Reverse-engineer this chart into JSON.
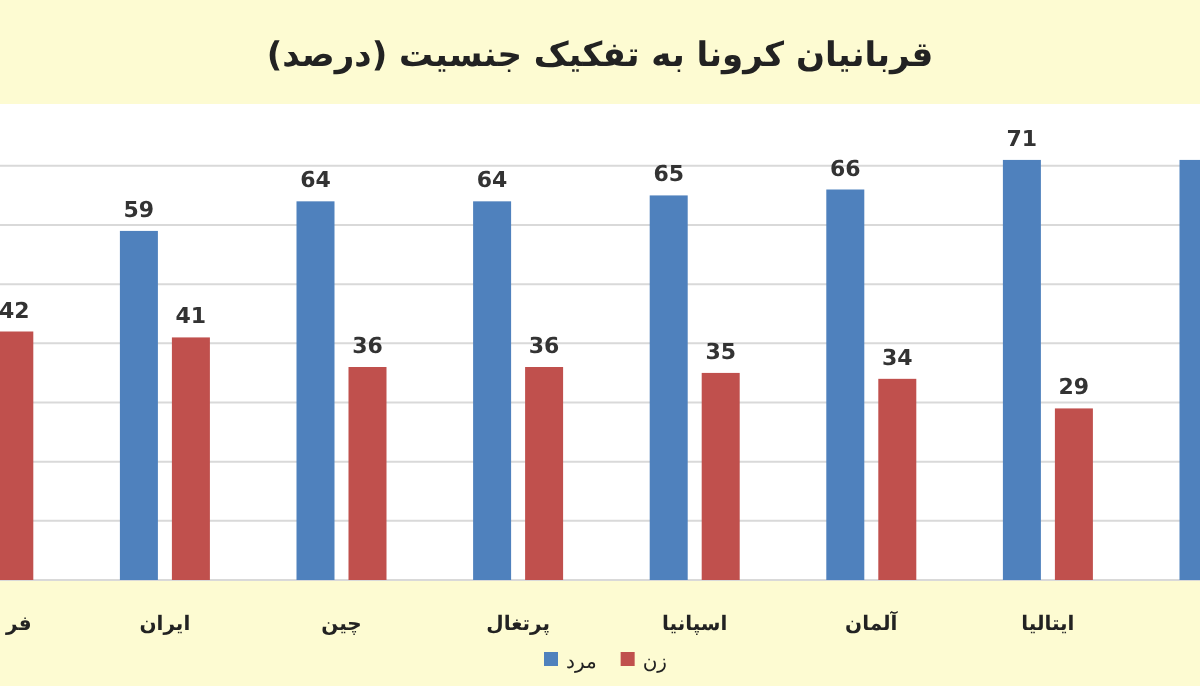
{
  "chart_data": {
    "type": "bar",
    "title": "قربانیان کرونا به تفکیک جنسیت (درصد)",
    "categories": [
      "فر",
      "ایران",
      "چین",
      "پرتغال",
      "اسپانیا",
      "آلمان",
      "ایتالیا",
      null
    ],
    "series": [
      {
        "name": "مرد",
        "color": "#4f81bd",
        "values": [
          null,
          59,
          64,
          64,
          65,
          66,
          71,
          71
        ],
        "value_labels": [
          null,
          "59",
          "64",
          "64",
          "65",
          "66",
          "71",
          null
        ]
      },
      {
        "name": "زن",
        "color": "#c0504d",
        "values": [
          42,
          41,
          36,
          36,
          35,
          34,
          29,
          null
        ],
        "value_labels": [
          "42",
          "41",
          "36",
          "36",
          "35",
          "34",
          "29",
          null
        ]
      }
    ],
    "ylim": [
      0,
      72
    ],
    "yticks": [
      {
        "value": 0,
        "label": null
      },
      {
        "value": 10,
        "label": null
      },
      {
        "value": 20,
        "label": null
      },
      {
        "value": 30,
        "label": null
      },
      {
        "value": 40,
        "label": null
      },
      {
        "value": 50,
        "label": null
      },
      {
        "value": 60,
        "label": null
      },
      {
        "value": 70,
        "label": null
      }
    ],
    "tick_labels": "x",
    "grid": "y",
    "legend": "bottom"
  }
}
